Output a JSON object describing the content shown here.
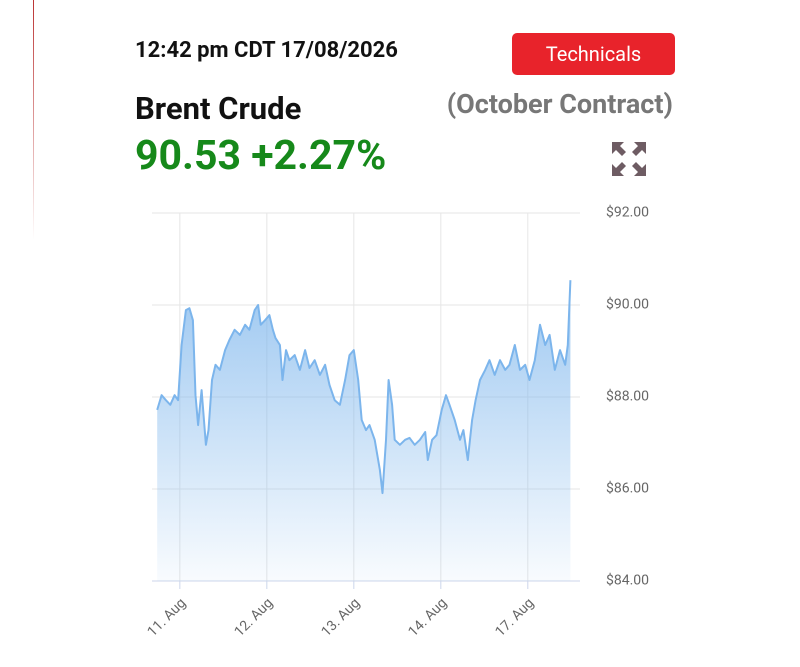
{
  "header": {
    "timestamp": "12:42 pm CDT 17/08/2026",
    "button": "Technicals",
    "name": "Brent Crude",
    "contract": "(October Contract)",
    "price": "90.53",
    "change": "+2.27%"
  },
  "chart_data": {
    "type": "area",
    "color": "#7cb5ec",
    "grid": true,
    "xlim": [
      -0.32,
      4.6
    ],
    "ylim": [
      84,
      92
    ],
    "xticks": [
      {
        "value": 0,
        "label": "11. Aug"
      },
      {
        "value": 1,
        "label": "12. Aug"
      },
      {
        "value": 2,
        "label": "13. Aug"
      },
      {
        "value": 3,
        "label": "14. Aug"
      },
      {
        "value": 4,
        "label": "17. Aug"
      }
    ],
    "yticks": [
      {
        "value": 84,
        "label": "$84.00"
      },
      {
        "value": 86,
        "label": "$86.00"
      },
      {
        "value": 88,
        "label": "$88.00"
      },
      {
        "value": 90,
        "label": "$90.00"
      },
      {
        "value": 92,
        "label": "$92.00"
      }
    ],
    "x": [
      -0.26,
      -0.21,
      -0.16,
      -0.11,
      -0.06,
      -0.02,
      0.02,
      0.07,
      0.11,
      0.15,
      0.18,
      0.21,
      0.25,
      0.3,
      0.33,
      0.37,
      0.41,
      0.46,
      0.52,
      0.57,
      0.63,
      0.69,
      0.75,
      0.8,
      0.86,
      0.9,
      0.93,
      0.98,
      1.03,
      1.07,
      1.1,
      1.15,
      1.18,
      1.22,
      1.26,
      1.32,
      1.38,
      1.44,
      1.49,
      1.55,
      1.61,
      1.67,
      1.72,
      1.78,
      1.84,
      1.9,
      1.95,
      2.0,
      2.05,
      2.09,
      2.14,
      2.18,
      2.24,
      2.3,
      2.33,
      2.37,
      2.4,
      2.44,
      2.47,
      2.53,
      2.59,
      2.64,
      2.7,
      2.76,
      2.82,
      2.85,
      2.9,
      2.95,
      3.01,
      3.06,
      3.1,
      3.16,
      3.22,
      3.26,
      3.31,
      3.36,
      3.4,
      3.45,
      3.51,
      3.56,
      3.62,
      3.68,
      3.74,
      3.79,
      3.85,
      3.91,
      3.97,
      4.02,
      4.08,
      4.14,
      4.2,
      4.25,
      4.31,
      4.37,
      4.43,
      4.46,
      4.49
    ],
    "values": [
      87.72,
      88.04,
      87.93,
      87.83,
      88.04,
      87.93,
      89.13,
      89.89,
      89.93,
      89.67,
      88.04,
      87.39,
      88.15,
      86.96,
      87.28,
      88.37,
      88.7,
      88.59,
      89.02,
      89.24,
      89.46,
      89.35,
      89.57,
      89.46,
      89.89,
      90.0,
      89.57,
      89.67,
      89.78,
      89.46,
      89.28,
      89.13,
      88.37,
      89.02,
      88.8,
      88.91,
      88.59,
      89.02,
      88.63,
      88.8,
      88.48,
      88.7,
      88.26,
      87.93,
      87.83,
      88.37,
      88.91,
      89.02,
      88.37,
      87.5,
      87.28,
      87.39,
      87.07,
      86.41,
      85.91,
      87.07,
      88.37,
      87.83,
      87.07,
      86.96,
      87.07,
      87.11,
      86.96,
      87.07,
      87.24,
      86.63,
      87.07,
      87.17,
      87.72,
      88.04,
      87.83,
      87.5,
      87.07,
      87.28,
      86.63,
      87.5,
      87.93,
      88.37,
      88.59,
      88.8,
      88.48,
      88.8,
      88.59,
      88.7,
      89.13,
      88.59,
      88.7,
      88.37,
      88.8,
      89.57,
      89.13,
      89.35,
      88.59,
      89.02,
      88.7,
      89.13,
      90.54
    ]
  }
}
